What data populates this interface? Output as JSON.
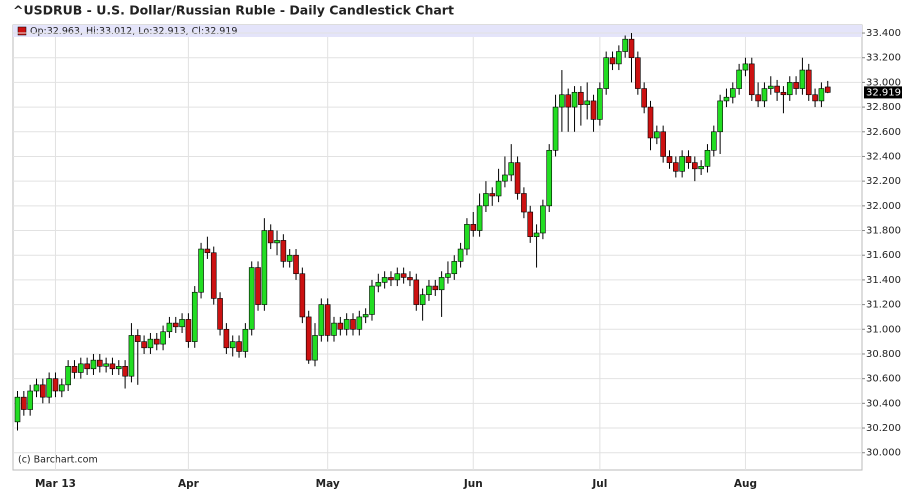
{
  "chart_data": {
    "type": "candlestick",
    "title": "^USDRUB - U.S. Dollar/Russian Ruble - Daily Candlestick Chart",
    "legend_text": "Op:32.963, Hi:33.012, Lo:32.913, Cl:32.919",
    "watermark": "(c) Barchart.com",
    "up_color": "#22dd22",
    "down_color": "#cc1111",
    "grid": true,
    "ylim": [
      29.86,
      33.465
    ],
    "yticks": [
      {
        "value": 30.0,
        "label": "30.000"
      },
      {
        "value": 30.2,
        "label": "30.200"
      },
      {
        "value": 30.4,
        "label": "30.400"
      },
      {
        "value": 30.6,
        "label": "30.600"
      },
      {
        "value": 30.8,
        "label": "30.800"
      },
      {
        "value": 31.0,
        "label": "31.000"
      },
      {
        "value": 31.2,
        "label": "31.200"
      },
      {
        "value": 31.4,
        "label": "31.400"
      },
      {
        "value": 31.6,
        "label": "31.600"
      },
      {
        "value": 31.8,
        "label": "31.800"
      },
      {
        "value": 32.0,
        "label": "32.000"
      },
      {
        "value": 32.2,
        "label": "32.200"
      },
      {
        "value": 32.4,
        "label": "32.400"
      },
      {
        "value": 32.6,
        "label": "32.600"
      },
      {
        "value": 32.8,
        "label": "32.800"
      },
      {
        "value": 33.0,
        "label": "33.000"
      },
      {
        "value": 33.2,
        "label": "33.200"
      },
      {
        "value": 33.4,
        "label": "33.400"
      }
    ],
    "categories": [
      null,
      null,
      null,
      null,
      null,
      null,
      "Mar 13",
      null,
      null,
      null,
      null,
      null,
      null,
      null,
      null,
      null,
      null,
      null,
      null,
      null,
      null,
      null,
      null,
      null,
      null,
      null,
      null,
      "Apr",
      null,
      null,
      null,
      null,
      null,
      null,
      null,
      null,
      null,
      null,
      null,
      null,
      null,
      null,
      null,
      null,
      null,
      null,
      null,
      null,
      null,
      "May",
      null,
      null,
      null,
      null,
      null,
      null,
      null,
      null,
      null,
      null,
      null,
      null,
      null,
      null,
      null,
      null,
      null,
      null,
      null,
      null,
      null,
      null,
      "Jun",
      null,
      null,
      null,
      null,
      null,
      null,
      null,
      null,
      null,
      null,
      null,
      null,
      null,
      null,
      null,
      null,
      null,
      null,
      null,
      "Jul",
      null,
      null,
      null,
      null,
      null,
      null,
      null,
      null,
      null,
      null,
      null,
      null,
      null,
      null,
      null,
      null,
      null,
      null,
      null,
      null,
      null,
      null,
      "Aug",
      null,
      null,
      null,
      null,
      null,
      null,
      null,
      null,
      null,
      null,
      null,
      null,
      null
    ],
    "open": [
      30.25,
      30.45,
      30.35,
      30.5,
      30.55,
      30.45,
      30.6,
      30.5,
      30.55,
      30.7,
      30.65,
      30.72,
      30.68,
      30.75,
      30.7,
      30.72,
      30.68,
      30.7,
      30.62,
      30.95,
      30.9,
      30.85,
      30.92,
      30.88,
      30.98,
      31.05,
      31.02,
      31.08,
      30.9,
      31.3,
      31.65,
      31.62,
      31.25,
      31.0,
      30.85,
      30.9,
      30.82,
      31.0,
      31.5,
      31.2,
      31.8,
      31.7,
      31.72,
      31.55,
      31.6,
      31.45,
      31.1,
      30.75,
      30.95,
      31.2,
      30.95,
      31.05,
      31.0,
      31.08,
      31.0,
      31.1,
      31.12,
      31.35,
      31.38,
      31.42,
      31.4,
      31.45,
      31.42,
      31.4,
      31.2,
      31.28,
      31.35,
      31.32,
      31.42,
      31.45,
      31.55,
      31.65,
      31.85,
      31.8,
      32.0,
      32.1,
      32.08,
      32.2,
      32.25,
      32.35,
      32.1,
      31.95,
      31.75,
      31.78,
      32.0,
      32.45,
      32.8,
      32.9,
      32.8,
      32.92,
      32.82,
      32.85,
      32.7,
      32.95,
      33.2,
      33.15,
      33.25,
      33.35,
      33.2,
      32.95,
      32.8,
      32.55,
      32.6,
      32.4,
      32.35,
      32.28,
      32.4,
      32.35,
      32.3,
      32.32,
      32.45,
      32.6,
      32.85,
      32.88,
      32.95,
      33.1,
      33.15,
      32.9,
      32.85,
      32.95,
      32.97,
      32.92,
      32.9,
      33.0,
      32.95,
      33.1,
      32.9,
      32.85,
      32.963
    ],
    "high": [
      30.5,
      30.5,
      30.55,
      30.6,
      30.6,
      30.65,
      30.65,
      30.6,
      30.75,
      30.75,
      30.77,
      30.77,
      30.8,
      30.8,
      30.77,
      30.77,
      30.75,
      30.75,
      31.05,
      31.0,
      30.95,
      30.97,
      30.97,
      31.03,
      31.1,
      31.1,
      31.13,
      31.13,
      31.35,
      31.7,
      31.75,
      31.67,
      31.3,
      31.05,
      30.95,
      30.95,
      31.05,
      31.55,
      31.55,
      31.9,
      31.85,
      31.8,
      31.77,
      31.65,
      31.65,
      31.5,
      31.15,
      31.05,
      31.25,
      31.25,
      31.1,
      31.1,
      31.13,
      31.13,
      31.15,
      31.17,
      31.4,
      31.45,
      31.47,
      31.47,
      31.5,
      31.5,
      31.47,
      31.45,
      31.33,
      31.4,
      31.4,
      31.47,
      31.55,
      31.6,
      31.7,
      31.9,
      31.95,
      32.1,
      32.2,
      32.15,
      32.3,
      32.4,
      32.5,
      32.4,
      32.15,
      32.0,
      31.85,
      32.05,
      32.5,
      32.9,
      33.1,
      32.95,
      32.97,
      32.97,
      33.0,
      32.9,
      33.0,
      33.25,
      33.25,
      33.3,
      33.38,
      33.4,
      33.25,
      33.0,
      32.85,
      32.65,
      32.65,
      32.45,
      32.4,
      32.45,
      32.45,
      32.4,
      32.37,
      32.5,
      32.65,
      32.9,
      32.95,
      33.0,
      33.15,
      33.2,
      33.2,
      33.0,
      33.0,
      33.05,
      33.02,
      32.97,
      33.05,
      33.05,
      33.2,
      33.15,
      32.95,
      33.0,
      33.012
    ],
    "low": [
      30.18,
      30.3,
      30.3,
      30.45,
      30.4,
      30.4,
      30.45,
      30.45,
      30.5,
      30.6,
      30.6,
      30.63,
      30.63,
      30.65,
      30.65,
      30.63,
      30.63,
      30.52,
      30.57,
      30.55,
      30.8,
      30.8,
      30.83,
      30.83,
      30.93,
      30.97,
      30.97,
      30.85,
      30.85,
      31.25,
      31.57,
      31.2,
      30.95,
      30.8,
      30.78,
      30.77,
      30.77,
      30.95,
      31.15,
      31.15,
      31.65,
      31.6,
      31.5,
      31.5,
      31.4,
      31.05,
      30.72,
      30.7,
      30.9,
      30.9,
      30.9,
      30.95,
      30.95,
      30.95,
      30.95,
      31.05,
      31.07,
      31.3,
      31.33,
      31.35,
      31.35,
      31.37,
      31.35,
      31.15,
      31.07,
      31.23,
      31.27,
      31.1,
      31.37,
      31.4,
      31.5,
      31.6,
      31.75,
      31.75,
      31.95,
      32.0,
      32.03,
      32.15,
      32.2,
      32.05,
      31.9,
      31.7,
      31.5,
      31.73,
      31.95,
      32.4,
      32.6,
      32.6,
      32.6,
      32.65,
      32.7,
      32.6,
      32.65,
      32.9,
      33.1,
      33.1,
      33.2,
      33.0,
      32.9,
      32.75,
      32.45,
      32.5,
      32.35,
      32.3,
      32.23,
      32.23,
      32.3,
      32.2,
      32.25,
      32.27,
      32.4,
      32.42,
      32.8,
      32.83,
      32.9,
      33.05,
      32.85,
      32.8,
      32.8,
      32.9,
      32.85,
      32.75,
      32.85,
      32.9,
      32.9,
      32.85,
      32.8,
      32.8,
      32.913
    ],
    "close": [
      30.45,
      30.35,
      30.5,
      30.55,
      30.45,
      30.6,
      30.5,
      30.55,
      30.7,
      30.65,
      30.72,
      30.68,
      30.75,
      30.7,
      30.72,
      30.68,
      30.7,
      30.62,
      30.95,
      30.9,
      30.85,
      30.92,
      30.88,
      30.98,
      31.05,
      31.02,
      31.08,
      30.9,
      31.3,
      31.65,
      31.62,
      31.25,
      31.0,
      30.85,
      30.9,
      30.82,
      31.0,
      31.5,
      31.2,
      31.8,
      31.7,
      31.72,
      31.55,
      31.6,
      31.45,
      31.1,
      30.75,
      30.95,
      31.2,
      30.95,
      31.05,
      31.0,
      31.08,
      31.0,
      31.1,
      31.12,
      31.35,
      31.38,
      31.42,
      31.4,
      31.45,
      31.42,
      31.4,
      31.2,
      31.28,
      31.35,
      31.32,
      31.42,
      31.45,
      31.55,
      31.65,
      31.85,
      31.8,
      32.0,
      32.1,
      32.08,
      32.2,
      32.25,
      32.35,
      32.1,
      31.95,
      31.75,
      31.78,
      32.0,
      32.45,
      32.8,
      32.9,
      32.8,
      32.92,
      32.82,
      32.85,
      32.7,
      32.95,
      33.2,
      33.15,
      33.25,
      33.35,
      33.2,
      32.95,
      32.8,
      32.55,
      32.6,
      32.4,
      32.35,
      32.28,
      32.4,
      32.35,
      32.3,
      32.32,
      32.45,
      32.6,
      32.85,
      32.88,
      32.95,
      33.1,
      33.15,
      32.9,
      32.85,
      32.95,
      32.97,
      32.92,
      32.9,
      33.0,
      32.95,
      33.1,
      32.9,
      32.85,
      32.95,
      32.919
    ]
  }
}
